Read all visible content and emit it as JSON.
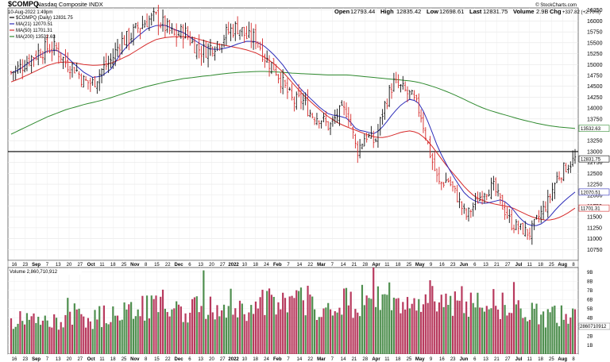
{
  "chart_data": [
    {
      "type": "ohlc",
      "symbol": "$COMPQ",
      "exchange_name": "Nasdaq Composite INDX",
      "date_stamp": "10-Aug-2022 1:49pm",
      "quote": {
        "open_label": "Open",
        "open": "12793.44",
        "high_label": "High",
        "high": "12835.42",
        "low_label": "Low",
        "low": "12698.61",
        "last_label": "Last",
        "last": "12831.75",
        "volume_label": "Volume",
        "volume": "2.9B",
        "chg_label": "Chg",
        "chg": "+337.82 (+2.70%)"
      },
      "legend": [
        {
          "label": "$COMPQ (Daily) 12831.75",
          "color": "#000000"
        },
        {
          "label": "MA(21) 12070.51",
          "color": "#2b2bb8"
        },
        {
          "label": "MA(50) 11701.31",
          "color": "#d62a2a"
        },
        {
          "label": "MA(200) 13532.63",
          "color": "#2f8a2f"
        }
      ],
      "watermark": "© StockCharts.com",
      "y_ticks": [
        "16250",
        "16000",
        "15750",
        "15500",
        "15250",
        "15000",
        "14750",
        "14500",
        "14250",
        "14000",
        "13750",
        "13500",
        "13250",
        "13000",
        "12750",
        "12500",
        "12250",
        "12000",
        "11750",
        "11500",
        "11250",
        "11000",
        "10750"
      ],
      "ylim": [
        10500,
        16300
      ],
      "horizontal_line": 13000,
      "price_tags": [
        {
          "label": "12831.75",
          "value": 12831.75,
          "color": "#000000"
        },
        {
          "label": "13532.63",
          "value": 13532.63,
          "color": "#2f8a2f"
        },
        {
          "label": "12070.51",
          "value": 12070.51,
          "color": "#2b2bb8"
        },
        {
          "label": "11701.31",
          "value": 11701.31,
          "color": "#d62a2a"
        }
      ],
      "x_range": [
        "2021-08-12",
        "2022-08-10"
      ],
      "x_ticks": [
        {
          "label": "16",
          "bold": false
        },
        {
          "label": "23",
          "bold": false
        },
        {
          "label": "Sep",
          "bold": true
        },
        {
          "label": "7",
          "bold": false
        },
        {
          "label": "13",
          "bold": false
        },
        {
          "label": "20",
          "bold": false
        },
        {
          "label": "27",
          "bold": false
        },
        {
          "label": "Oct",
          "bold": true
        },
        {
          "label": "11",
          "bold": false
        },
        {
          "label": "18",
          "bold": false
        },
        {
          "label": "25",
          "bold": false
        },
        {
          "label": "Nov",
          "bold": true
        },
        {
          "label": "8",
          "bold": false
        },
        {
          "label": "15",
          "bold": false
        },
        {
          "label": "22",
          "bold": false
        },
        {
          "label": "Dec",
          "bold": true
        },
        {
          "label": "6",
          "bold": false
        },
        {
          "label": "13",
          "bold": false
        },
        {
          "label": "20",
          "bold": false
        },
        {
          "label": "27",
          "bold": false
        },
        {
          "label": "2022",
          "bold": true
        },
        {
          "label": "10",
          "bold": false
        },
        {
          "label": "18",
          "bold": false
        },
        {
          "label": "24",
          "bold": false
        },
        {
          "label": "Feb",
          "bold": true
        },
        {
          "label": "7",
          "bold": false
        },
        {
          "label": "14",
          "bold": false
        },
        {
          "label": "22",
          "bold": false
        },
        {
          "label": "Mar",
          "bold": true
        },
        {
          "label": "7",
          "bold": false
        },
        {
          "label": "14",
          "bold": false
        },
        {
          "label": "21",
          "bold": false
        },
        {
          "label": "28",
          "bold": false
        },
        {
          "label": "Apr",
          "bold": true
        },
        {
          "label": "11",
          "bold": false
        },
        {
          "label": "18",
          "bold": false
        },
        {
          "label": "25",
          "bold": false
        },
        {
          "label": "May",
          "bold": true
        },
        {
          "label": "9",
          "bold": false
        },
        {
          "label": "16",
          "bold": false
        },
        {
          "label": "23",
          "bold": false
        },
        {
          "label": "Jun",
          "bold": true
        },
        {
          "label": "6",
          "bold": false
        },
        {
          "label": "13",
          "bold": false
        },
        {
          "label": "21",
          "bold": false
        },
        {
          "label": "27",
          "bold": false
        },
        {
          "label": "Jul",
          "bold": true
        },
        {
          "label": "11",
          "bold": false
        },
        {
          "label": "18",
          "bold": false
        },
        {
          "label": "25",
          "bold": false
        },
        {
          "label": "Aug",
          "bold": true
        },
        {
          "label": "8",
          "bold": false
        }
      ],
      "closes_weekly": [
        14822,
        14941,
        15130,
        15280,
        15380,
        15360,
        15040,
        14920,
        14610,
        14570,
        14890,
        15090,
        15520,
        15620,
        15860,
        16020,
        16080,
        15850,
        15640,
        15770,
        15480,
        15300,
        15410,
        15560,
        15780,
        15870,
        15600,
        15610,
        15120,
        14920,
        14500,
        14140,
        14200,
        13850,
        13780,
        13560,
        13880,
        13950,
        12990,
        13390,
        13200,
        14020,
        14580,
        14430,
        14260,
        13900,
        13000,
        12250,
        12360,
        11980,
        11500,
        11800,
        12100,
        12190,
        11760,
        11340,
        11230,
        11110,
        11500,
        11840,
        12400,
        12650,
        12830
      ],
      "ma21_weekly": [
        14800,
        14900,
        15050,
        15200,
        15310,
        15330,
        15200,
        15000,
        14820,
        14700,
        14740,
        14900,
        15240,
        15480,
        15660,
        15830,
        15900,
        15900,
        15800,
        15730,
        15580,
        15450,
        15350,
        15350,
        15400,
        15480,
        15540,
        15520,
        15400,
        15200,
        14960,
        14650,
        14400,
        14200,
        14000,
        13850,
        13820,
        13760,
        13500,
        13460,
        13400,
        13600,
        13880,
        14100,
        14220,
        14080,
        13600,
        13050,
        12650,
        12300,
        12000,
        11860,
        11800,
        11850,
        11900,
        11720,
        11450,
        11300,
        11300,
        11450,
        11700,
        11900,
        12070
      ],
      "ma50_weekly": [
        14600,
        14680,
        14780,
        14880,
        14980,
        15040,
        15060,
        15040,
        15000,
        14980,
        14990,
        15030,
        15120,
        15220,
        15350,
        15480,
        15580,
        15620,
        15640,
        15640,
        15620,
        15560,
        15500,
        15460,
        15420,
        15380,
        15330,
        15260,
        15150,
        15000,
        14800,
        14560,
        14330,
        14130,
        13950,
        13780,
        13650,
        13560,
        13480,
        13400,
        13330,
        13320,
        13380,
        13450,
        13480,
        13400,
        13200,
        12920,
        12640,
        12400,
        12150,
        11960,
        11860,
        11800,
        11760,
        11720,
        11620,
        11520,
        11450,
        11420,
        11460,
        11560,
        11701
      ],
      "ma200_weekly": [
        13400,
        13500,
        13600,
        13700,
        13800,
        13880,
        13960,
        14020,
        14080,
        14130,
        14180,
        14240,
        14310,
        14380,
        14440,
        14500,
        14550,
        14600,
        14640,
        14680,
        14700,
        14730,
        14750,
        14780,
        14800,
        14820,
        14830,
        14840,
        14840,
        14830,
        14820,
        14800,
        14790,
        14780,
        14770,
        14760,
        14760,
        14760,
        14740,
        14720,
        14700,
        14680,
        14660,
        14640,
        14620,
        14580,
        14520,
        14450,
        14370,
        14280,
        14180,
        14080,
        13990,
        13920,
        13860,
        13800,
        13740,
        13690,
        13640,
        13600,
        13570,
        13550,
        13532
      ]
    },
    {
      "type": "bar",
      "title": "Volume 2,860,710,912",
      "y_ticks": [
        "9B",
        "8B",
        "7B",
        "6B",
        "5B",
        "4B",
        "3B",
        "2B",
        "1B"
      ],
      "value_tag": "2860710912",
      "ylim_billions": [
        0,
        9.5
      ],
      "weekly_avg_volume_billions": [
        3.6,
        3.7,
        3.9,
        3.5,
        3.4,
        3.6,
        4.1,
        4.3,
        3.9,
        3.8,
        4.2,
        4.4,
        4.6,
        4.9,
        5.2,
        5.0,
        5.4,
        5.6,
        5.2,
        4.7,
        4.9,
        5.1,
        5.5,
        5.3,
        5.8,
        5.2,
        5.0,
        4.8,
        5.6,
        5.9,
        5.2,
        5.4,
        6.1,
        5.6,
        5.0,
        4.8,
        5.6,
        5.9,
        5.4,
        6.0,
        6.4,
        6.2,
        6.1,
        5.2,
        5.0,
        5.8,
        6.8,
        6.2,
        5.7,
        5.4,
        5.0,
        5.6,
        5.9,
        6.1,
        5.3,
        5.1,
        5.0,
        4.5,
        4.2,
        4.0,
        4.3,
        4.1,
        3.9
      ]
    }
  ]
}
